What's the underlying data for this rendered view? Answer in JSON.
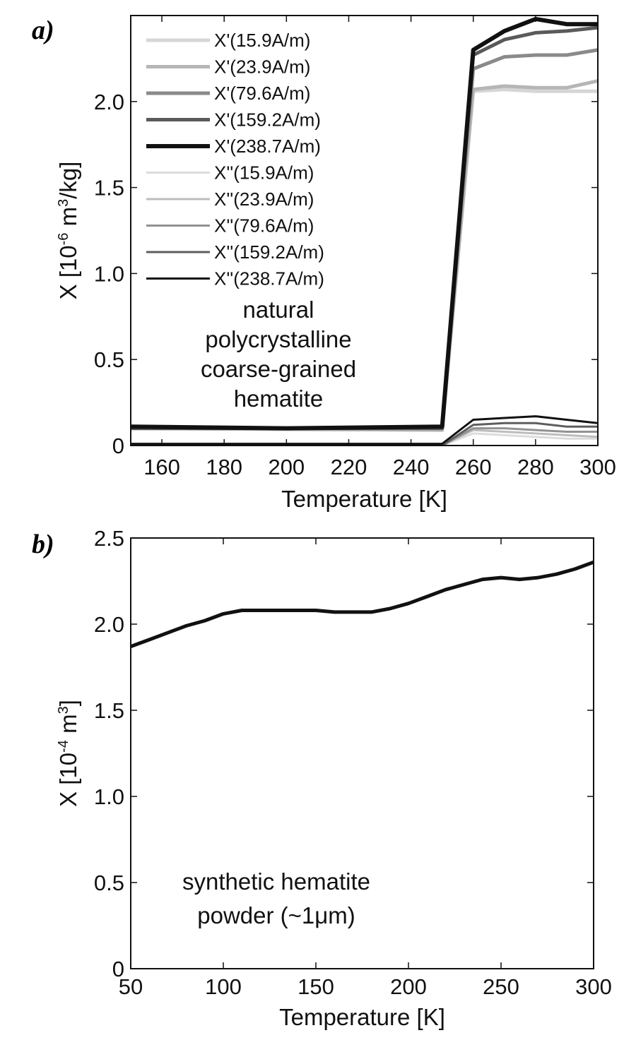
{
  "chart_data": [
    {
      "panel": "a)",
      "type": "line",
      "xlabel": "Temperature [K]",
      "ylabel_parts": [
        "X [10",
        "-6",
        " m",
        "3",
        "/kg]"
      ],
      "xlim": [
        150,
        300
      ],
      "ylim": [
        0,
        2.5
      ],
      "xticks": [
        160,
        180,
        200,
        220,
        240,
        260,
        280,
        300
      ],
      "yticks": [
        0,
        0.5,
        1.0,
        1.5,
        2.0
      ],
      "ytick_labels": [
        "0",
        "0.5",
        "1.0",
        "1.5",
        "2.0"
      ],
      "annotation": [
        "natural",
        "polycrystalline",
        "coarse-grained",
        "hematite"
      ],
      "legend_position": "top-left",
      "series": [
        {
          "name": "X'(15.9A/m)",
          "color": "#d6d6d6",
          "width": 5,
          "x": [
            150,
            250,
            260,
            270,
            280,
            290,
            300
          ],
          "y": [
            0.1,
            0.09,
            2.06,
            2.07,
            2.06,
            2.06,
            2.06
          ]
        },
        {
          "name": "X'(23.9A/m)",
          "color": "#b6b6b6",
          "width": 5,
          "x": [
            150,
            250,
            260,
            270,
            280,
            290,
            300
          ],
          "y": [
            0.1,
            0.09,
            2.07,
            2.09,
            2.08,
            2.08,
            2.12
          ]
        },
        {
          "name": "X'(79.6A/m)",
          "color": "#8a8a8a",
          "width": 5,
          "x": [
            150,
            250,
            260,
            270,
            280,
            290,
            300
          ],
          "y": [
            0.1,
            0.1,
            2.19,
            2.26,
            2.27,
            2.27,
            2.3
          ]
        },
        {
          "name": "X'(159.2A/m)",
          "color": "#5a5a5a",
          "width": 5,
          "x": [
            150,
            250,
            260,
            270,
            280,
            290,
            300
          ],
          "y": [
            0.1,
            0.1,
            2.27,
            2.36,
            2.4,
            2.41,
            2.43
          ]
        },
        {
          "name": "X'(238.7A/m)",
          "color": "#111111",
          "width": 6,
          "x": [
            150,
            200,
            250,
            260,
            270,
            280,
            290,
            300
          ],
          "y": [
            0.11,
            0.1,
            0.11,
            2.3,
            2.41,
            2.48,
            2.45,
            2.45
          ]
        },
        {
          "name": "X''(15.9A/m)",
          "color": "#dcdcdc",
          "width": 3,
          "x": [
            150,
            250,
            260,
            270,
            280,
            290,
            300
          ],
          "y": [
            0.0,
            0.0,
            0.07,
            0.06,
            0.05,
            0.04,
            0.04
          ]
        },
        {
          "name": "X''(23.9A/m)",
          "color": "#bdbdbd",
          "width": 3,
          "x": [
            150,
            250,
            260,
            270,
            280,
            290,
            300
          ],
          "y": [
            0.0,
            0.0,
            0.09,
            0.08,
            0.07,
            0.06,
            0.05
          ]
        },
        {
          "name": "X''(79.6A/m)",
          "color": "#929292",
          "width": 3,
          "x": [
            150,
            250,
            260,
            270,
            280,
            290,
            300
          ],
          "y": [
            0.0,
            0.0,
            0.1,
            0.1,
            0.09,
            0.08,
            0.08
          ]
        },
        {
          "name": "X''(159.2A/m)",
          "color": "#5e5e5e",
          "width": 3,
          "x": [
            150,
            250,
            260,
            270,
            280,
            290,
            300
          ],
          "y": [
            0.0,
            0.0,
            0.12,
            0.13,
            0.13,
            0.11,
            0.11
          ]
        },
        {
          "name": "X''(238.7A/m)",
          "color": "#111111",
          "width": 3,
          "x": [
            150,
            250,
            260,
            270,
            280,
            290,
            300
          ],
          "y": [
            0.01,
            0.01,
            0.15,
            0.16,
            0.17,
            0.15,
            0.13
          ]
        }
      ]
    },
    {
      "panel": "b)",
      "type": "line",
      "xlabel": "Temperature [K]",
      "ylabel_parts": [
        "X [10",
        "-4",
        " m",
        "3",
        "]"
      ],
      "xlim": [
        50,
        300
      ],
      "ylim": [
        0,
        2.5
      ],
      "xticks": [
        50,
        100,
        150,
        200,
        250,
        300
      ],
      "yticks": [
        0,
        0.5,
        1.0,
        1.5,
        2.0,
        2.5
      ],
      "ytick_labels": [
        "0",
        "0.5",
        "1.0",
        "1.5",
        "2.0",
        "2.5"
      ],
      "annotation": [
        "synthetic hematite",
        "powder (~1μm)"
      ],
      "series": [
        {
          "color": "#111111",
          "width": 5,
          "x": [
            50,
            60,
            70,
            80,
            90,
            100,
            110,
            120,
            130,
            140,
            150,
            160,
            170,
            180,
            190,
            200,
            210,
            220,
            230,
            240,
            250,
            260,
            270,
            280,
            290,
            300
          ],
          "y": [
            1.87,
            1.91,
            1.95,
            1.99,
            2.02,
            2.06,
            2.08,
            2.08,
            2.08,
            2.08,
            2.08,
            2.07,
            2.07,
            2.07,
            2.09,
            2.12,
            2.16,
            2.2,
            2.23,
            2.26,
            2.27,
            2.26,
            2.27,
            2.29,
            2.32,
            2.36
          ]
        },
        {
          "color": "#111111",
          "width": 2,
          "x": [
            50,
            300
          ],
          "y": [
            0.0,
            0.0
          ]
        }
      ]
    }
  ]
}
